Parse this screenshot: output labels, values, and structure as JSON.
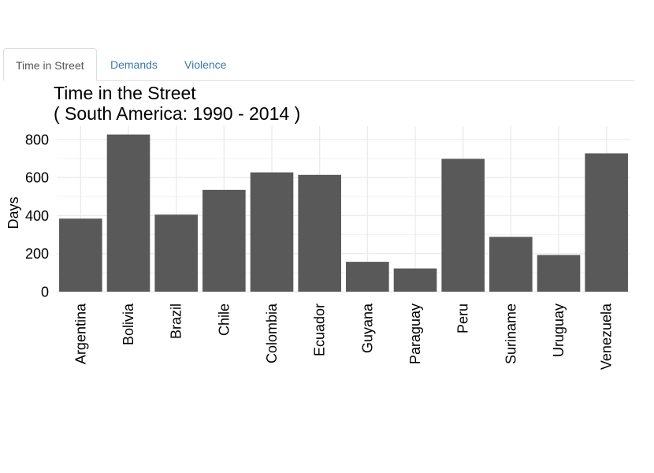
{
  "tabs": [
    {
      "label": "Time in Street",
      "active": true
    },
    {
      "label": "Demands",
      "active": false
    },
    {
      "label": "Violence",
      "active": false
    }
  ],
  "colors": {
    "tab_link": "#337ab7",
    "tab_active_text": "#555555",
    "bar_fill": "#595959",
    "grid": "#ebebeb"
  },
  "chart_data": {
    "type": "bar",
    "title": "Time in the Street",
    "subtitle": "( South America: 1990 - 2014 )",
    "xlabel": "",
    "ylabel": "Days",
    "categories": [
      "Argentina",
      "Bolivia",
      "Brazil",
      "Chile",
      "Colombia",
      "Ecuador",
      "Guyana",
      "Paraguay",
      "Peru",
      "Suriname",
      "Uruguay",
      "Venezuela"
    ],
    "values": [
      384,
      826,
      405,
      535,
      627,
      614,
      157,
      122,
      698,
      288,
      193,
      727
    ],
    "yticks": [
      0,
      200,
      400,
      600,
      800
    ],
    "ylim": [
      0,
      870
    ],
    "grid": true,
    "legend": "none"
  }
}
